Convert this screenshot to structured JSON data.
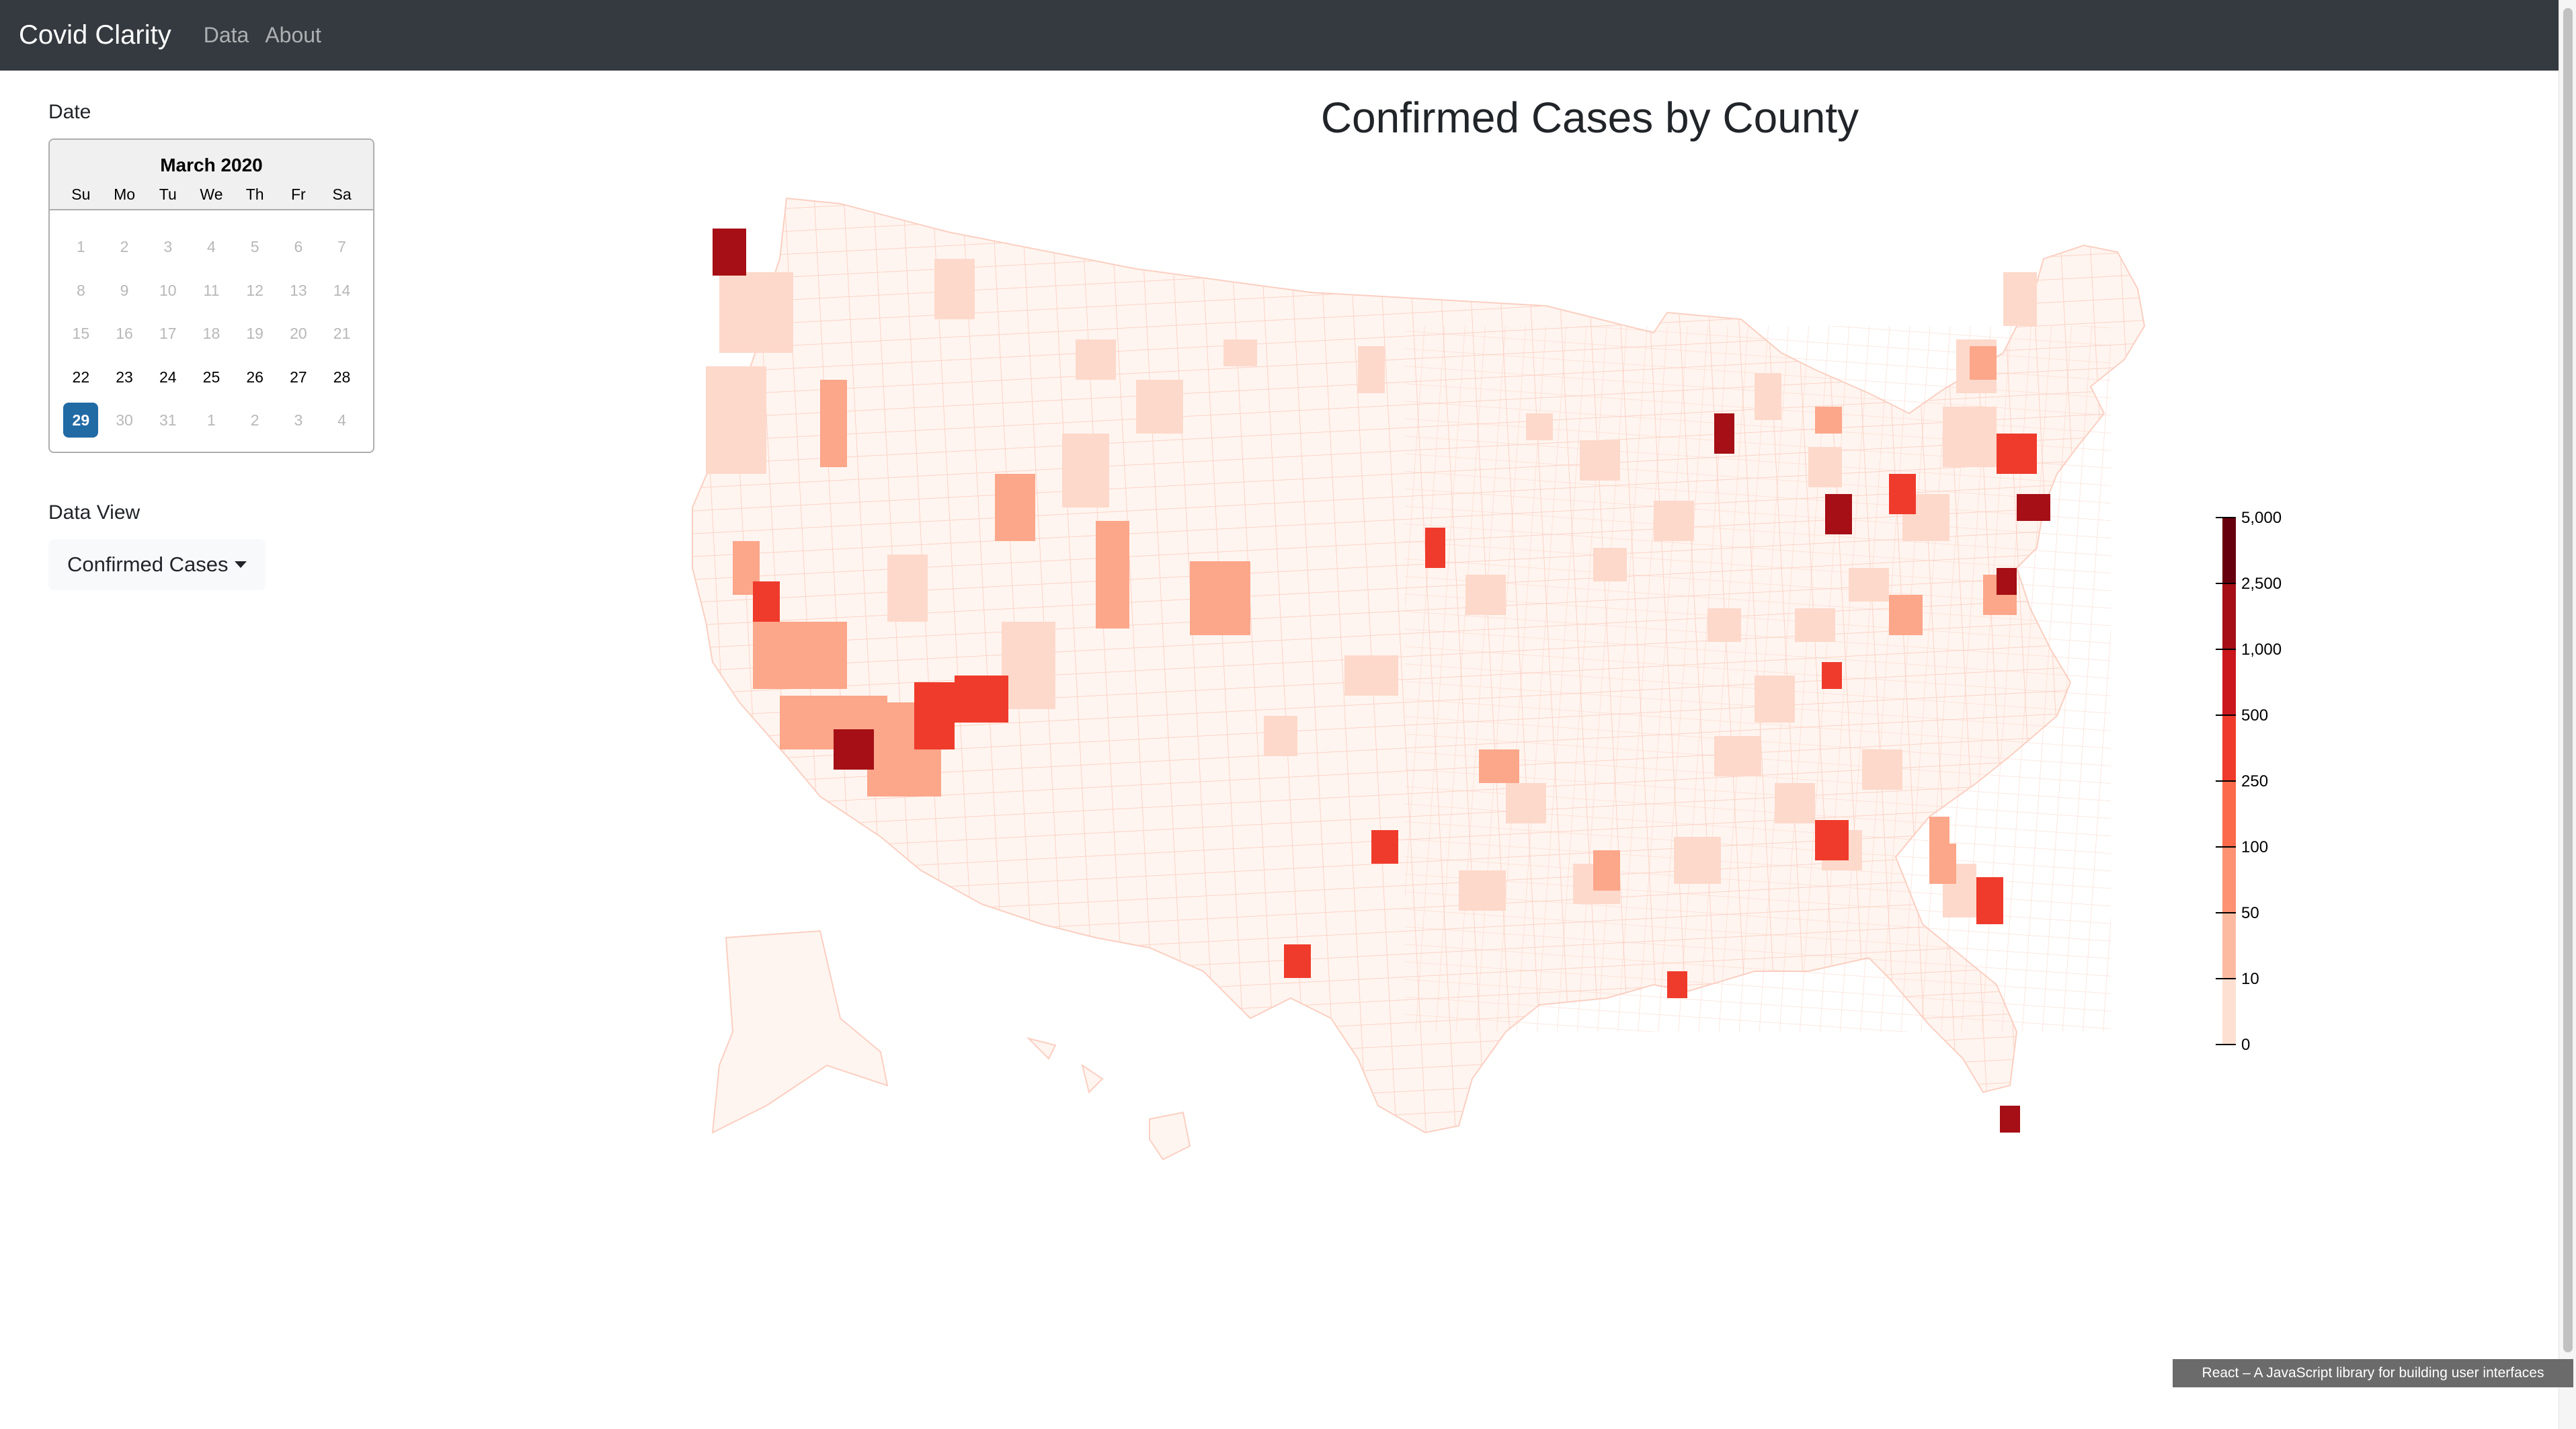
{
  "navbar": {
    "brand": "Covid Clarity",
    "links": [
      "Data",
      "About"
    ]
  },
  "sidebar": {
    "date_label": "Date",
    "calendar": {
      "month": "March 2020",
      "weekdays": [
        "Su",
        "Mo",
        "Tu",
        "We",
        "Th",
        "Fr",
        "Sa"
      ],
      "weeks": [
        [
          "1",
          "2",
          "3",
          "4",
          "5",
          "6",
          "7"
        ],
        [
          "8",
          "9",
          "10",
          "11",
          "12",
          "13",
          "14"
        ],
        [
          "15",
          "16",
          "17",
          "18",
          "19",
          "20",
          "21"
        ],
        [
          "22",
          "23",
          "24",
          "25",
          "26",
          "27",
          "28"
        ],
        [
          "29",
          "30",
          "31",
          "1",
          "2",
          "3",
          "4"
        ]
      ],
      "selected": "29"
    },
    "data_view_label": "Data View",
    "data_view_value": "Confirmed Cases"
  },
  "main": {
    "title": "Confirmed Cases by County"
  },
  "legend": {
    "ticks": [
      "5,000",
      "2,500",
      "1,000",
      "500",
      "250",
      "100",
      "50",
      "10",
      "0"
    ],
    "colors": [
      "#67000d",
      "#a50f15",
      "#cb181d",
      "#ef3b2c",
      "#fb6a4a",
      "#fc9272",
      "#fcbba1",
      "#fee0d2",
      "#fff5f0"
    ]
  },
  "tooltip": {
    "text": "React – A JavaScript library for building user interfaces"
  },
  "colors": {
    "navbar": "#343a40",
    "selected_day": "#216ba5",
    "map_stroke": "#fcd5c8"
  }
}
